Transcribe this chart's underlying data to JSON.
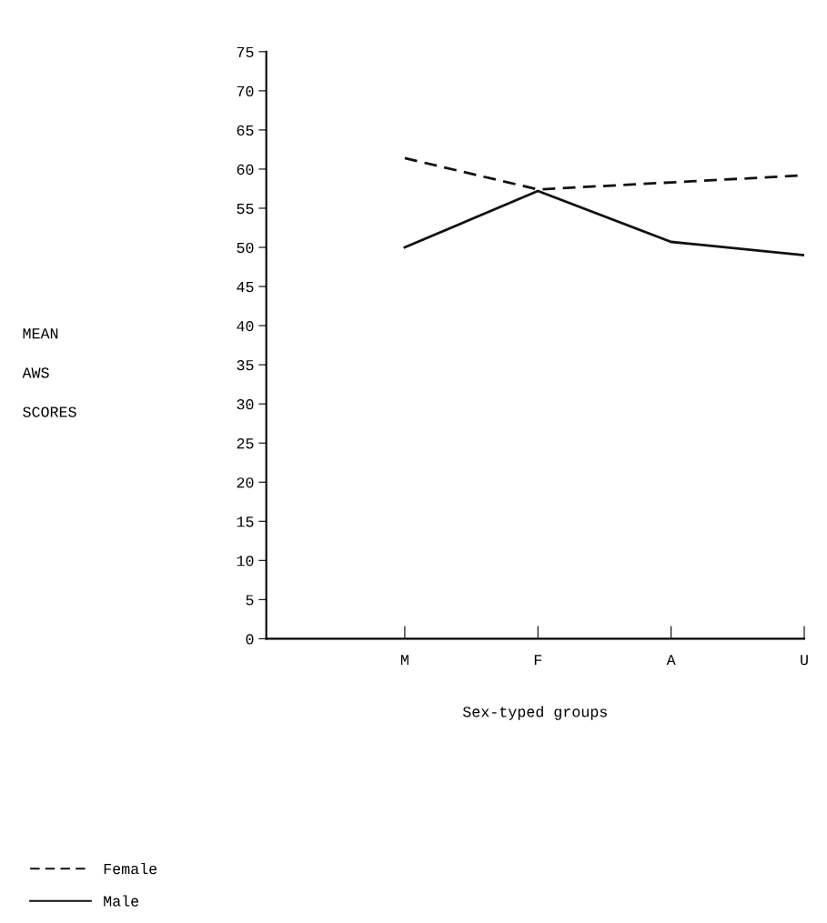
{
  "chart_data": {
    "type": "line",
    "xlabel": "Sex-typed groups",
    "ylabel": "MEAN\n\nAWS\n\nSCORES",
    "categories": [
      "M",
      "F",
      "A",
      "U"
    ],
    "series": [
      {
        "name": "Female",
        "color": "#111111",
        "values": [
          61.4,
          57.4,
          58.3,
          59.2
        ],
        "line_style": "dashed"
      },
      {
        "name": "Male",
        "color": "#111111",
        "values": [
          50.0,
          57.2,
          50.7,
          49.0
        ],
        "line_style": "solid"
      }
    ],
    "ylim": [
      0,
      75
    ],
    "yticks": [
      0,
      5,
      10,
      15,
      20,
      25,
      30,
      35,
      40,
      45,
      50,
      55,
      60,
      65,
      70,
      75
    ],
    "grid": false,
    "legend": "bottom left",
    "marker": "none"
  }
}
